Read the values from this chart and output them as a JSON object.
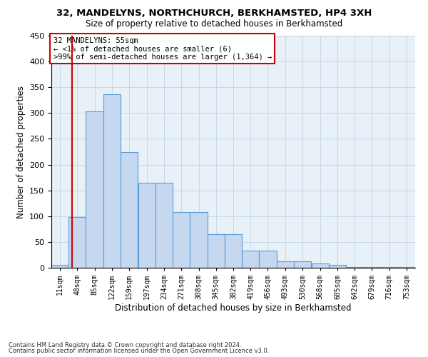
{
  "title": "32, MANDELYNS, NORTHCHURCH, BERKHAMSTED, HP4 3XH",
  "subtitle": "Size of property relative to detached houses in Berkhamsted",
  "xlabel": "Distribution of detached houses by size in Berkhamsted",
  "ylabel": "Number of detached properties",
  "footnote1": "Contains HM Land Registry data © Crown copyright and database right 2024.",
  "footnote2": "Contains public sector information licensed under the Open Government Licence v3.0.",
  "annotation_title": "32 MANDELYNS: 55sqm",
  "annotation_line1": "← <1% of detached houses are smaller (6)",
  "annotation_line2": ">99% of semi-detached houses are larger (1,364) →",
  "bar_edges": [
    11,
    48,
    85,
    122,
    159,
    197,
    234,
    271,
    308,
    345,
    382,
    419,
    456,
    493,
    530,
    568,
    605,
    642,
    679,
    716,
    753
  ],
  "bar_heights": [
    5,
    99,
    303,
    336,
    225,
    165,
    165,
    108,
    108,
    65,
    65,
    33,
    33,
    13,
    13,
    8,
    5,
    2,
    2,
    1,
    2
  ],
  "bar_color": "#c5d8f0",
  "bar_edge_color": "#5b9bd5",
  "property_size": 55,
  "vline_color": "#cc0000",
  "ylim": [
    0,
    450
  ],
  "tick_labels": [
    "11sqm",
    "48sqm",
    "85sqm",
    "122sqm",
    "159sqm",
    "197sqm",
    "234sqm",
    "271sqm",
    "308sqm",
    "345sqm",
    "382sqm",
    "419sqm",
    "456sqm",
    "493sqm",
    "530sqm",
    "568sqm",
    "605sqm",
    "642sqm",
    "679sqm",
    "716sqm",
    "753sqm"
  ],
  "grid_color": "#c8d8e8",
  "bg_color": "#e8f0f8",
  "annotation_box_color": "#ffffff",
  "annotation_box_edge": "#cc0000"
}
